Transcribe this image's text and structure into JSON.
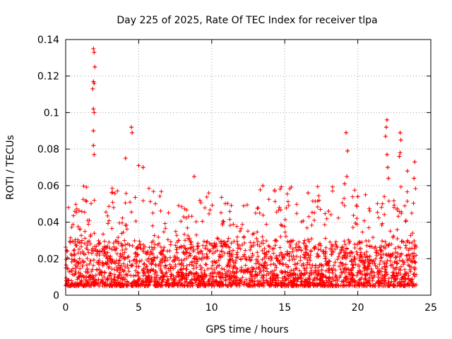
{
  "chart_data": {
    "type": "scatter",
    "title": "Day 225 of 2025, Rate Of TEC Index for receiver tlpa",
    "xlabel": "GPS time / hours",
    "ylabel": "ROTI / TECUs",
    "xlim": [
      0,
      25
    ],
    "ylim": [
      0,
      0.14
    ],
    "x_ticks": [
      0,
      5,
      10,
      15,
      20,
      25
    ],
    "y_ticks": [
      0,
      0.02,
      0.04,
      0.06,
      0.08,
      0.1,
      0.12,
      0.14
    ],
    "grid": true,
    "marker": "+",
    "series_color": "#ff0000",
    "time_range_hours": [
      0,
      24
    ],
    "baseline_typical_range": [
      0.005,
      0.03
    ],
    "series": [
      {
        "name": "ROTI",
        "notable_points": [
          {
            "x": 1.9,
            "y": 0.135
          },
          {
            "x": 1.95,
            "y": 0.133
          },
          {
            "x": 2.0,
            "y": 0.125
          },
          {
            "x": 1.9,
            "y": 0.117
          },
          {
            "x": 1.95,
            "y": 0.116
          },
          {
            "x": 1.85,
            "y": 0.113
          },
          {
            "x": 1.9,
            "y": 0.102
          },
          {
            "x": 1.95,
            "y": 0.1
          },
          {
            "x": 1.9,
            "y": 0.09
          },
          {
            "x": 1.9,
            "y": 0.082
          },
          {
            "x": 1.95,
            "y": 0.077
          },
          {
            "x": 4.5,
            "y": 0.092
          },
          {
            "x": 4.55,
            "y": 0.089
          },
          {
            "x": 4.1,
            "y": 0.075
          },
          {
            "x": 5.0,
            "y": 0.071
          },
          {
            "x": 5.3,
            "y": 0.07
          },
          {
            "x": 8.8,
            "y": 0.065
          },
          {
            "x": 13.5,
            "y": 0.06
          },
          {
            "x": 16.6,
            "y": 0.056
          },
          {
            "x": 18.0,
            "y": 0.046
          },
          {
            "x": 19.2,
            "y": 0.089
          },
          {
            "x": 19.3,
            "y": 0.079
          },
          {
            "x": 19.25,
            "y": 0.065
          },
          {
            "x": 19.1,
            "y": 0.061
          },
          {
            "x": 20.0,
            "y": 0.054
          },
          {
            "x": 22.0,
            "y": 0.096
          },
          {
            "x": 21.95,
            "y": 0.092
          },
          {
            "x": 21.9,
            "y": 0.087
          },
          {
            "x": 22.0,
            "y": 0.077
          },
          {
            "x": 22.05,
            "y": 0.07
          },
          {
            "x": 22.1,
            "y": 0.064
          },
          {
            "x": 22.9,
            "y": 0.089
          },
          {
            "x": 22.95,
            "y": 0.085
          },
          {
            "x": 22.9,
            "y": 0.078
          },
          {
            "x": 22.85,
            "y": 0.076
          },
          {
            "x": 23.4,
            "y": 0.068
          },
          {
            "x": 23.9,
            "y": 0.073
          },
          {
            "x": 23.85,
            "y": 0.064
          }
        ]
      }
    ]
  }
}
